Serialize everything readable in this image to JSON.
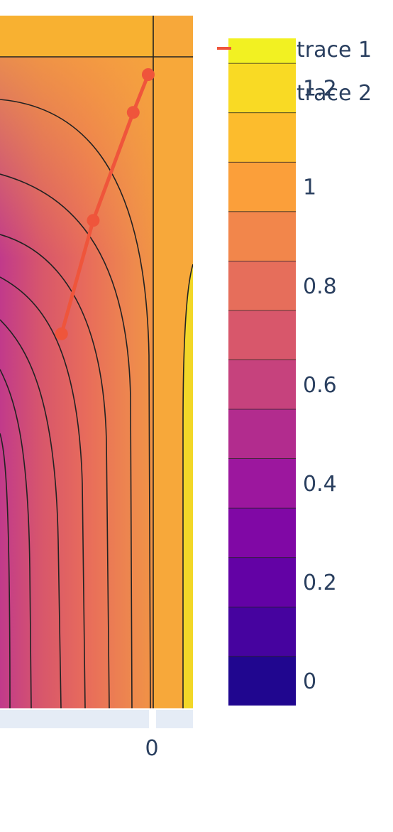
{
  "chart_data": {
    "type": "contour",
    "title": "",
    "xlabel": "",
    "ylabel": "",
    "x_ticks": [
      "0"
    ],
    "colorbar": {
      "ticks": [
        "0",
        "0.2",
        "0.4",
        "0.6",
        "0.8",
        "1",
        "1.2"
      ],
      "tick_values": [
        0,
        0.2,
        0.4,
        0.6,
        0.8,
        1,
        1.2
      ],
      "range": [
        -0.05,
        1.3
      ],
      "contour_step": 0.1,
      "colorscale": [
        "#0d0887",
        "#46039f",
        "#7201a8",
        "#9c179e",
        "#bd3786",
        "#d8576b",
        "#ed7953",
        "#fb9f3a",
        "#fdca26",
        "#f0f921"
      ]
    },
    "series": [
      {
        "name": "trace 1",
        "type": "line+markers",
        "color": "#ef553b",
        "points": [
          [
            -0.55,
            0.72
          ],
          [
            -0.36,
            0.93
          ],
          [
            -0.12,
            1.13
          ],
          [
            -0.03,
            1.2
          ]
        ]
      },
      {
        "name": "trace 2",
        "type": "contour"
      }
    ],
    "legend": [
      "trace 1",
      "trace 2"
    ],
    "legend_position": "top-right"
  }
}
